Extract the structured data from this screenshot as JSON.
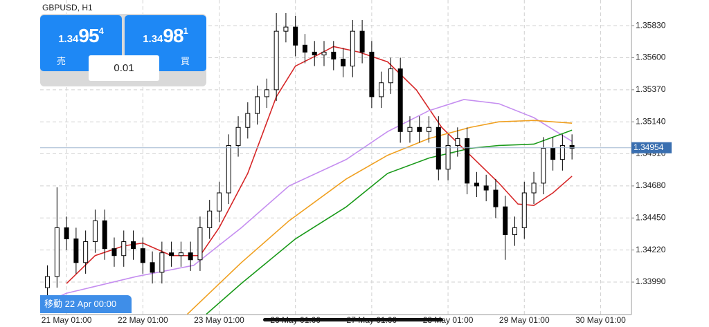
{
  "header": {
    "symbol": "GBPUSD, H1"
  },
  "trade_panel": {
    "sell": {
      "price_main": "1.34",
      "price_big": "95",
      "price_sup": "4",
      "label": "売"
    },
    "buy": {
      "price_main": "1.34",
      "price_big": "98",
      "price_sup": "1",
      "label": "買"
    },
    "lot": "0.01"
  },
  "footer_label": "移動 22 Apr 00:00",
  "chart_data": {
    "type": "candlestick",
    "x": [
      -6,
      -3,
      0,
      3,
      6,
      9,
      12,
      15,
      18,
      21,
      24,
      27,
      30,
      33,
      36,
      39,
      42,
      45,
      48,
      51,
      54,
      57,
      60,
      63,
      66,
      69,
      72,
      75,
      78,
      81,
      84,
      87,
      90,
      93,
      96,
      99,
      102,
      105,
      108,
      111,
      114,
      117,
      120,
      123,
      126,
      129,
      132,
      135,
      138,
      141,
      144,
      147,
      150,
      153,
      156,
      159
    ],
    "open": [
      1.3395,
      1.3403,
      1.3438,
      1.343,
      1.3413,
      1.3428,
      1.3443,
      1.3423,
      1.3418,
      1.3428,
      1.3423,
      1.3413,
      1.3406,
      1.342,
      1.3418,
      1.342,
      1.3415,
      1.3438,
      1.345,
      1.3463,
      1.3497,
      1.351,
      1.352,
      1.3532,
      1.3537,
      1.3579,
      1.3582,
      1.3569,
      1.3564,
      1.3562,
      1.3564,
      1.3559,
      1.3554,
      1.3579,
      1.3564,
      1.3532,
      1.3542,
      1.3552,
      1.3507,
      1.351,
      1.3507,
      1.351,
      1.348,
      1.3497,
      1.3502,
      1.347,
      1.3468,
      1.3465,
      1.3453,
      1.3433,
      1.3438,
      1.3463,
      1.347,
      1.3495,
      1.3487,
      1.3497
    ],
    "high": [
      1.3411,
      1.3467,
      1.3446,
      1.3438,
      1.3436,
      1.3451,
      1.3451,
      1.3431,
      1.3436,
      1.3436,
      1.3431,
      1.3421,
      1.3428,
      1.3428,
      1.3428,
      1.3428,
      1.3446,
      1.3458,
      1.3471,
      1.3505,
      1.3518,
      1.3528,
      1.354,
      1.3545,
      1.3592,
      1.3592,
      1.359,
      1.3577,
      1.3572,
      1.3572,
      1.3572,
      1.3567,
      1.3587,
      1.3587,
      1.3572,
      1.355,
      1.356,
      1.356,
      1.3518,
      1.3518,
      1.3518,
      1.3518,
      1.3505,
      1.351,
      1.351,
      1.3478,
      1.3476,
      1.3473,
      1.3461,
      1.3446,
      1.3471,
      1.3478,
      1.3503,
      1.3503,
      1.3505,
      1.3505
    ],
    "low": [
      1.3387,
      1.3395,
      1.3422,
      1.3405,
      1.3405,
      1.342,
      1.3415,
      1.341,
      1.341,
      1.3415,
      1.3405,
      1.3398,
      1.3398,
      1.341,
      1.341,
      1.3407,
      1.3407,
      1.343,
      1.3442,
      1.3455,
      1.3489,
      1.3502,
      1.3512,
      1.3524,
      1.3529,
      1.3571,
      1.3561,
      1.3556,
      1.3554,
      1.3554,
      1.3551,
      1.3546,
      1.3546,
      1.3556,
      1.3524,
      1.3524,
      1.3534,
      1.3499,
      1.3499,
      1.3499,
      1.3499,
      1.3472,
      1.3472,
      1.3489,
      1.3462,
      1.346,
      1.3457,
      1.3445,
      1.3415,
      1.3425,
      1.343,
      1.3455,
      1.3462,
      1.3479,
      1.3479,
      1.3487
    ],
    "close": [
      1.3403,
      1.3438,
      1.343,
      1.3413,
      1.3428,
      1.3443,
      1.3423,
      1.3418,
      1.3428,
      1.3423,
      1.3413,
      1.3406,
      1.342,
      1.3418,
      1.342,
      1.3415,
      1.3438,
      1.345,
      1.3463,
      1.3497,
      1.351,
      1.352,
      1.3532,
      1.3537,
      1.3579,
      1.3582,
      1.3569,
      1.3564,
      1.3562,
      1.3564,
      1.3559,
      1.3554,
      1.3579,
      1.3564,
      1.3532,
      1.3542,
      1.3552,
      1.3507,
      1.351,
      1.3507,
      1.351,
      1.348,
      1.3497,
      1.3502,
      1.347,
      1.3468,
      1.3465,
      1.3453,
      1.3433,
      1.3438,
      1.3463,
      1.347,
      1.3495,
      1.3487,
      1.3497,
      1.3495
    ],
    "up_color": "#ffffff",
    "down_color": "#000000",
    "moving_averages": [
      {
        "color": "#d62728",
        "x": [
          0,
          9,
          18,
          24,
          33,
          42,
          48,
          57,
          66,
          72,
          79,
          84,
          92,
          101,
          110,
          118,
          127,
          136,
          142,
          147,
          153,
          159
        ],
        "values": [
          1.3398,
          1.3418,
          1.3425,
          1.3427,
          1.3418,
          1.3418,
          1.3438,
          1.3477,
          1.3532,
          1.3554,
          1.3562,
          1.3568,
          1.3564,
          1.3557,
          1.3537,
          1.351,
          1.349,
          1.347,
          1.3455,
          1.3454,
          1.3463,
          1.3475
        ]
      },
      {
        "color": "#c58ef0",
        "x": [
          -8,
          0,
          22,
          40,
          55,
          70,
          88,
          101,
          114,
          125,
          136,
          147,
          159
        ],
        "values": [
          1.3383,
          1.3391,
          1.3403,
          1.3411,
          1.3438,
          1.3468,
          1.3487,
          1.3507,
          1.3522,
          1.353,
          1.3527,
          1.3517,
          1.35
        ]
      },
      {
        "color": "#f0a020",
        "x": [
          38,
          55,
          70,
          88,
          101,
          114,
          127,
          136,
          147,
          159
        ],
        "values": [
          1.3376,
          1.3413,
          1.3443,
          1.3473,
          1.349,
          1.3502,
          1.351,
          1.3514,
          1.3515,
          1.3513
        ]
      },
      {
        "color": "#1a9a1a",
        "x": [
          44,
          55,
          72,
          88,
          101,
          114,
          127,
          136,
          147,
          159
        ],
        "values": [
          1.3376,
          1.3398,
          1.343,
          1.3453,
          1.3477,
          1.3488,
          1.3495,
          1.3497,
          1.3498,
          1.3508
        ]
      }
    ],
    "current_price": 1.34954,
    "xlim": [
      -8.3,
      177.7
    ],
    "xticks": [
      {
        "value": 0,
        "label": "21 May 01:00"
      },
      {
        "value": 24,
        "label": "22 May 01:00"
      },
      {
        "value": 48,
        "label": "23 May 01:00"
      },
      {
        "value": 72,
        "label": "26 May 01:00"
      },
      {
        "value": 96,
        "label": "27 May 01:00"
      },
      {
        "value": 120,
        "label": "28 May 01:00"
      },
      {
        "value": 144,
        "label": "29 May 01:00"
      },
      {
        "value": 168,
        "label": "30 May 01:00"
      }
    ],
    "ylim": [
      1.33757,
      1.36014
    ],
    "yticks": [
      {
        "value": 1.3583,
        "label": "1.35830"
      },
      {
        "value": 1.356,
        "label": "1.35600"
      },
      {
        "value": 1.3537,
        "label": "1.35370"
      },
      {
        "value": 1.3514,
        "label": "1.35140"
      },
      {
        "value": 1.3491,
        "label": "1.34910"
      },
      {
        "value": 1.3468,
        "label": "1.34680"
      },
      {
        "value": 1.3445,
        "label": "1.34450"
      },
      {
        "value": 1.3422,
        "label": "1.34220"
      },
      {
        "value": 1.3399,
        "label": "1.33990"
      }
    ],
    "grid": true
  }
}
